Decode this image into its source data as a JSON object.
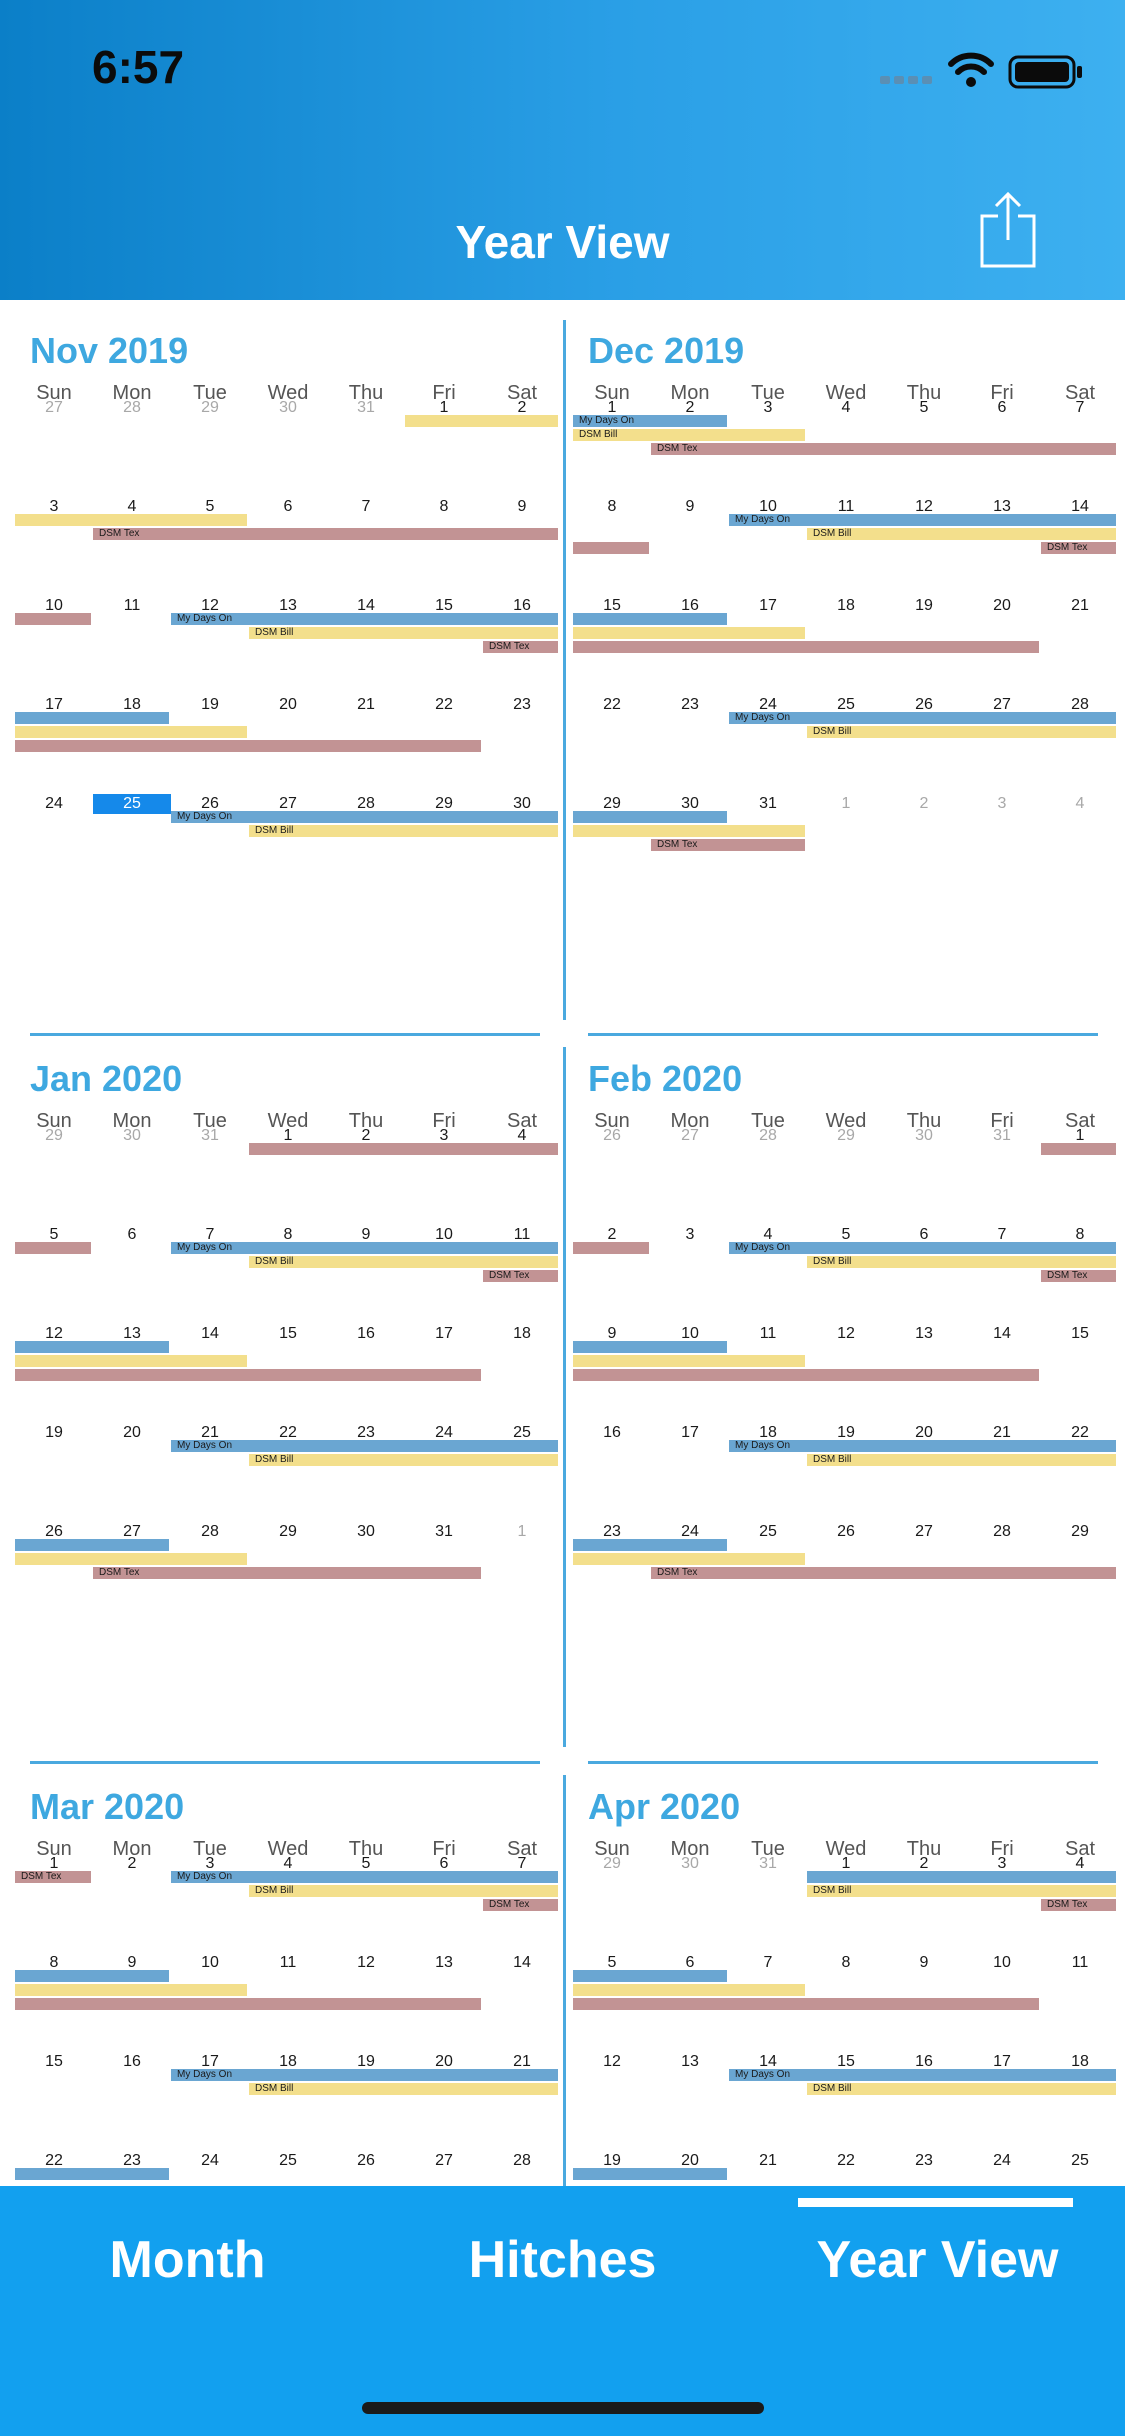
{
  "status_bar": {
    "time": "6:57"
  },
  "header": {
    "title": "Year View",
    "share_icon": "share-icon"
  },
  "weekdays": [
    "Sun",
    "Mon",
    "Tue",
    "Wed",
    "Thu",
    "Fri",
    "Sat"
  ],
  "today_marker": {
    "month_index": 0,
    "week": 4,
    "col": 1
  },
  "colors": {
    "my_days_on": "#6aa6d2",
    "dsm_bill": "#f3df8c",
    "dsm_tex": "#c29394",
    "accent": "#3ea8e0",
    "today": "#1589ea",
    "tabbar": "#12a0ef"
  },
  "months": [
    {
      "title": "Nov 2019",
      "weeks": [
        [
          "27",
          "28",
          "29",
          "30",
          "31",
          "1",
          "2"
        ],
        [
          "3",
          "4",
          "5",
          "6",
          "7",
          "8",
          "9"
        ],
        [
          "10",
          "11",
          "12",
          "13",
          "14",
          "15",
          "16"
        ],
        [
          "17",
          "18",
          "19",
          "20",
          "21",
          "22",
          "23"
        ],
        [
          "24",
          "25",
          "26",
          "27",
          "28",
          "29",
          "30"
        ]
      ],
      "other": [
        [
          0,
          0
        ],
        [
          0,
          1
        ],
        [
          0,
          2
        ],
        [
          0,
          3
        ],
        [
          0,
          4
        ]
      ],
      "bars": [
        {
          "w": 0,
          "lane": 0,
          "type": "bill",
          "s": 5,
          "e": 6,
          "label": ""
        },
        {
          "w": 1,
          "lane": 0,
          "type": "bill",
          "s": 0,
          "e": 2,
          "label": ""
        },
        {
          "w": 1,
          "lane": 1,
          "type": "tex",
          "s": 1,
          "e": 6,
          "label": "DSM Tex"
        },
        {
          "w": 2,
          "lane": 0,
          "type": "tex",
          "s": 0,
          "e": 0,
          "label": ""
        },
        {
          "w": 2,
          "lane": 0,
          "type": "days",
          "s": 2,
          "e": 6,
          "label": "My Days On"
        },
        {
          "w": 2,
          "lane": 1,
          "type": "bill",
          "s": 3,
          "e": 6,
          "label": "DSM Bill"
        },
        {
          "w": 2,
          "lane": 2,
          "type": "tex",
          "s": 6,
          "e": 6,
          "label": "DSM Tex"
        },
        {
          "w": 3,
          "lane": 0,
          "type": "days",
          "s": 0,
          "e": 1,
          "label": ""
        },
        {
          "w": 3,
          "lane": 1,
          "type": "bill",
          "s": 0,
          "e": 2,
          "label": ""
        },
        {
          "w": 3,
          "lane": 2,
          "type": "tex",
          "s": 0,
          "e": 5,
          "label": ""
        },
        {
          "w": 4,
          "lane": 0,
          "type": "days",
          "s": 2,
          "e": 6,
          "label": "My Days On"
        },
        {
          "w": 4,
          "lane": 1,
          "type": "bill",
          "s": 3,
          "e": 6,
          "label": "DSM Bill"
        }
      ]
    },
    {
      "title": "Dec 2019",
      "weeks": [
        [
          "1",
          "2",
          "3",
          "4",
          "5",
          "6",
          "7"
        ],
        [
          "8",
          "9",
          "10",
          "11",
          "12",
          "13",
          "14"
        ],
        [
          "15",
          "16",
          "17",
          "18",
          "19",
          "20",
          "21"
        ],
        [
          "22",
          "23",
          "24",
          "25",
          "26",
          "27",
          "28"
        ],
        [
          "29",
          "30",
          "31",
          "1",
          "2",
          "3",
          "4"
        ]
      ],
      "other": [
        [
          4,
          3
        ],
        [
          4,
          4
        ],
        [
          4,
          5
        ],
        [
          4,
          6
        ]
      ],
      "bars": [
        {
          "w": 0,
          "lane": 0,
          "type": "days",
          "s": 0,
          "e": 1,
          "label": "My Days On"
        },
        {
          "w": 0,
          "lane": 1,
          "type": "bill",
          "s": 0,
          "e": 2,
          "label": "DSM Bill"
        },
        {
          "w": 0,
          "lane": 2,
          "type": "tex",
          "s": 1,
          "e": 6,
          "label": "DSM Tex"
        },
        {
          "w": 1,
          "lane": 0,
          "type": "days",
          "s": 2,
          "e": 6,
          "label": "My Days On"
        },
        {
          "w": 1,
          "lane": 1,
          "type": "bill",
          "s": 3,
          "e": 6,
          "label": "DSM Bill"
        },
        {
          "w": 1,
          "lane": 2,
          "type": "tex",
          "s": 0,
          "e": 0,
          "label": ""
        },
        {
          "w": 1,
          "lane": 2,
          "type": "tex",
          "s": 6,
          "e": 6,
          "label": "DSM Tex"
        },
        {
          "w": 2,
          "lane": 0,
          "type": "days",
          "s": 0,
          "e": 1,
          "label": ""
        },
        {
          "w": 2,
          "lane": 1,
          "type": "bill",
          "s": 0,
          "e": 2,
          "label": ""
        },
        {
          "w": 2,
          "lane": 2,
          "type": "tex",
          "s": 0,
          "e": 5,
          "label": ""
        },
        {
          "w": 3,
          "lane": 0,
          "type": "days",
          "s": 2,
          "e": 6,
          "label": "My Days On"
        },
        {
          "w": 3,
          "lane": 1,
          "type": "bill",
          "s": 3,
          "e": 6,
          "label": "DSM Bill"
        },
        {
          "w": 4,
          "lane": 0,
          "type": "days",
          "s": 0,
          "e": 1,
          "label": ""
        },
        {
          "w": 4,
          "lane": 1,
          "type": "bill",
          "s": 0,
          "e": 2,
          "label": ""
        },
        {
          "w": 4,
          "lane": 2,
          "type": "tex",
          "s": 1,
          "e": 2,
          "label": "DSM Tex"
        }
      ]
    },
    {
      "title": "Jan 2020",
      "weeks": [
        [
          "29",
          "30",
          "31",
          "1",
          "2",
          "3",
          "4"
        ],
        [
          "5",
          "6",
          "7",
          "8",
          "9",
          "10",
          "11"
        ],
        [
          "12",
          "13",
          "14",
          "15",
          "16",
          "17",
          "18"
        ],
        [
          "19",
          "20",
          "21",
          "22",
          "23",
          "24",
          "25"
        ],
        [
          "26",
          "27",
          "28",
          "29",
          "30",
          "31",
          "1"
        ]
      ],
      "other": [
        [
          0,
          0
        ],
        [
          0,
          1
        ],
        [
          0,
          2
        ],
        [
          4,
          6
        ]
      ],
      "bars": [
        {
          "w": 0,
          "lane": 0,
          "type": "tex",
          "s": 3,
          "e": 6,
          "label": ""
        },
        {
          "w": 1,
          "lane": 0,
          "type": "tex",
          "s": 0,
          "e": 0,
          "label": ""
        },
        {
          "w": 1,
          "lane": 0,
          "type": "days",
          "s": 2,
          "e": 6,
          "label": "My Days On"
        },
        {
          "w": 1,
          "lane": 1,
          "type": "bill",
          "s": 3,
          "e": 6,
          "label": "DSM Bill"
        },
        {
          "w": 1,
          "lane": 2,
          "type": "tex",
          "s": 6,
          "e": 6,
          "label": "DSM Tex"
        },
        {
          "w": 2,
          "lane": 0,
          "type": "days",
          "s": 0,
          "e": 1,
          "label": ""
        },
        {
          "w": 2,
          "lane": 1,
          "type": "bill",
          "s": 0,
          "e": 2,
          "label": ""
        },
        {
          "w": 2,
          "lane": 2,
          "type": "tex",
          "s": 0,
          "e": 5,
          "label": ""
        },
        {
          "w": 3,
          "lane": 0,
          "type": "days",
          "s": 2,
          "e": 6,
          "label": "My Days On"
        },
        {
          "w": 3,
          "lane": 1,
          "type": "bill",
          "s": 3,
          "e": 6,
          "label": "DSM Bill"
        },
        {
          "w": 4,
          "lane": 0,
          "type": "days",
          "s": 0,
          "e": 1,
          "label": ""
        },
        {
          "w": 4,
          "lane": 1,
          "type": "bill",
          "s": 0,
          "e": 2,
          "label": ""
        },
        {
          "w": 4,
          "lane": 2,
          "type": "tex",
          "s": 1,
          "e": 5,
          "label": "DSM Tex"
        }
      ]
    },
    {
      "title": "Feb 2020",
      "weeks": [
        [
          "26",
          "27",
          "28",
          "29",
          "30",
          "31",
          "1"
        ],
        [
          "2",
          "3",
          "4",
          "5",
          "6",
          "7",
          "8"
        ],
        [
          "9",
          "10",
          "11",
          "12",
          "13",
          "14",
          "15"
        ],
        [
          "16",
          "17",
          "18",
          "19",
          "20",
          "21",
          "22"
        ],
        [
          "23",
          "24",
          "25",
          "26",
          "27",
          "28",
          "29"
        ]
      ],
      "other": [
        [
          0,
          0
        ],
        [
          0,
          1
        ],
        [
          0,
          2
        ],
        [
          0,
          3
        ],
        [
          0,
          4
        ],
        [
          0,
          5
        ]
      ],
      "bars": [
        {
          "w": 0,
          "lane": 0,
          "type": "tex",
          "s": 6,
          "e": 6,
          "label": ""
        },
        {
          "w": 1,
          "lane": 0,
          "type": "tex",
          "s": 0,
          "e": 0,
          "label": ""
        },
        {
          "w": 1,
          "lane": 0,
          "type": "days",
          "s": 2,
          "e": 6,
          "label": "My Days On"
        },
        {
          "w": 1,
          "lane": 1,
          "type": "bill",
          "s": 3,
          "e": 6,
          "label": "DSM Bill"
        },
        {
          "w": 1,
          "lane": 2,
          "type": "tex",
          "s": 6,
          "e": 6,
          "label": "DSM Tex"
        },
        {
          "w": 2,
          "lane": 0,
          "type": "days",
          "s": 0,
          "e": 1,
          "label": ""
        },
        {
          "w": 2,
          "lane": 1,
          "type": "bill",
          "s": 0,
          "e": 2,
          "label": ""
        },
        {
          "w": 2,
          "lane": 2,
          "type": "tex",
          "s": 0,
          "e": 5,
          "label": ""
        },
        {
          "w": 3,
          "lane": 0,
          "type": "days",
          "s": 2,
          "e": 6,
          "label": "My Days On"
        },
        {
          "w": 3,
          "lane": 1,
          "type": "bill",
          "s": 3,
          "e": 6,
          "label": "DSM Bill"
        },
        {
          "w": 4,
          "lane": 0,
          "type": "days",
          "s": 0,
          "e": 1,
          "label": ""
        },
        {
          "w": 4,
          "lane": 1,
          "type": "bill",
          "s": 0,
          "e": 2,
          "label": ""
        },
        {
          "w": 4,
          "lane": 2,
          "type": "tex",
          "s": 1,
          "e": 6,
          "label": "DSM Tex"
        }
      ]
    },
    {
      "title": "Mar 2020",
      "weeks": [
        [
          "1",
          "2",
          "3",
          "4",
          "5",
          "6",
          "7"
        ],
        [
          "8",
          "9",
          "10",
          "11",
          "12",
          "13",
          "14"
        ],
        [
          "15",
          "16",
          "17",
          "18",
          "19",
          "20",
          "21"
        ],
        [
          "22",
          "23",
          "24",
          "25",
          "26",
          "27",
          "28"
        ]
      ],
      "other": [],
      "bars": [
        {
          "w": 0,
          "lane": 0,
          "type": "tex",
          "s": 0,
          "e": 0,
          "label": "DSM Tex"
        },
        {
          "w": 0,
          "lane": 0,
          "type": "days",
          "s": 2,
          "e": 6,
          "label": "My Days On"
        },
        {
          "w": 0,
          "lane": 1,
          "type": "bill",
          "s": 3,
          "e": 6,
          "label": "DSM Bill"
        },
        {
          "w": 0,
          "lane": 2,
          "type": "tex",
          "s": 6,
          "e": 6,
          "label": "DSM Tex"
        },
        {
          "w": 1,
          "lane": 0,
          "type": "days",
          "s": 0,
          "e": 1,
          "label": ""
        },
        {
          "w": 1,
          "lane": 1,
          "type": "bill",
          "s": 0,
          "e": 2,
          "label": ""
        },
        {
          "w": 1,
          "lane": 2,
          "type": "tex",
          "s": 0,
          "e": 5,
          "label": ""
        },
        {
          "w": 2,
          "lane": 0,
          "type": "days",
          "s": 2,
          "e": 6,
          "label": "My Days On"
        },
        {
          "w": 2,
          "lane": 1,
          "type": "bill",
          "s": 3,
          "e": 6,
          "label": "DSM Bill"
        },
        {
          "w": 3,
          "lane": 0,
          "type": "days",
          "s": 0,
          "e": 1,
          "label": ""
        }
      ]
    },
    {
      "title": "Apr 2020",
      "weeks": [
        [
          "29",
          "30",
          "31",
          "1",
          "2",
          "3",
          "4"
        ],
        [
          "5",
          "6",
          "7",
          "8",
          "9",
          "10",
          "11"
        ],
        [
          "12",
          "13",
          "14",
          "15",
          "16",
          "17",
          "18"
        ],
        [
          "19",
          "20",
          "21",
          "22",
          "23",
          "24",
          "25"
        ]
      ],
      "other": [
        [
          0,
          0
        ],
        [
          0,
          1
        ],
        [
          0,
          2
        ]
      ],
      "bars": [
        {
          "w": 0,
          "lane": 0,
          "type": "days",
          "s": 3,
          "e": 6,
          "label": ""
        },
        {
          "w": 0,
          "lane": 1,
          "type": "bill",
          "s": 3,
          "e": 6,
          "label": "DSM Bill"
        },
        {
          "w": 0,
          "lane": 2,
          "type": "tex",
          "s": 6,
          "e": 6,
          "label": "DSM Tex"
        },
        {
          "w": 1,
          "lane": 0,
          "type": "days",
          "s": 0,
          "e": 1,
          "label": ""
        },
        {
          "w": 1,
          "lane": 1,
          "type": "bill",
          "s": 0,
          "e": 2,
          "label": ""
        },
        {
          "w": 1,
          "lane": 2,
          "type": "tex",
          "s": 0,
          "e": 5,
          "label": ""
        },
        {
          "w": 2,
          "lane": 0,
          "type": "days",
          "s": 2,
          "e": 6,
          "label": "My Days On"
        },
        {
          "w": 2,
          "lane": 1,
          "type": "bill",
          "s": 3,
          "e": 6,
          "label": "DSM Bill"
        },
        {
          "w": 3,
          "lane": 0,
          "type": "days",
          "s": 0,
          "e": 1,
          "label": ""
        }
      ]
    }
  ],
  "tabs": [
    {
      "label": "Month"
    },
    {
      "label": "Hitches"
    },
    {
      "label": "Year View"
    }
  ],
  "selected_tab": "Year View"
}
